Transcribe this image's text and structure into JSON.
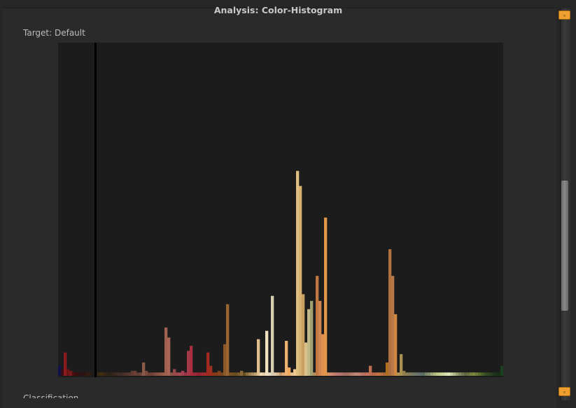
{
  "window": {
    "title": "Analysis: Color-Histogram",
    "target_label": "Target: Default",
    "clipped_section_label": "Classification"
  },
  "scrollbar": {
    "up_icon": "small-square-icon",
    "down_icon": "small-square-icon",
    "accent": "#f0a030",
    "scroll_position": 0.55,
    "visible_fraction": 0.33
  },
  "chart_data": {
    "type": "bar",
    "title": "Color-Histogram",
    "xlabel": "",
    "ylabel": "",
    "ylim": [
      0,
      100
    ],
    "bin_count": 159,
    "marker_bin": 13,
    "bars": [
      {
        "bin": 0,
        "value": 3,
        "color": "#12124a"
      },
      {
        "bin": 1,
        "value": 2,
        "color": "#3a0e14"
      },
      {
        "bin": 2,
        "value": 7,
        "color": "#8a1c20"
      },
      {
        "bin": 3,
        "value": 2,
        "color": "#6a1418"
      },
      {
        "bin": 4,
        "value": 1.5,
        "color": "#7a1a1a"
      },
      {
        "bin": 5,
        "value": 1,
        "color": "#4a1010"
      },
      {
        "bin": 6,
        "value": 1,
        "color": "#3a0c0c"
      },
      {
        "bin": 7,
        "value": 1,
        "color": "#301010"
      },
      {
        "bin": 8,
        "value": 1,
        "color": "#2a1010"
      },
      {
        "bin": 9,
        "value": 1,
        "color": "#301410"
      },
      {
        "bin": 10,
        "value": 1,
        "color": "#361a10"
      },
      {
        "bin": 11,
        "value": 1,
        "color": "#2c1a10"
      },
      {
        "bin": 14,
        "value": 1,
        "color": "#3a2a10"
      },
      {
        "bin": 15,
        "value": 1,
        "color": "#443010"
      },
      {
        "bin": 16,
        "value": 1,
        "color": "#3a2814"
      },
      {
        "bin": 17,
        "value": 1,
        "color": "#302414"
      },
      {
        "bin": 18,
        "value": 1,
        "color": "#2a2218"
      },
      {
        "bin": 19,
        "value": 1,
        "color": "#34241c"
      },
      {
        "bin": 20,
        "value": 1,
        "color": "#3c2820"
      },
      {
        "bin": 21,
        "value": 1,
        "color": "#442c24"
      },
      {
        "bin": 22,
        "value": 1,
        "color": "#3a2c28"
      },
      {
        "bin": 23,
        "value": 1,
        "color": "#4a3028"
      },
      {
        "bin": 24,
        "value": 1,
        "color": "#52342c"
      },
      {
        "bin": 25,
        "value": 1,
        "color": "#5a3a30"
      },
      {
        "bin": 26,
        "value": 1.5,
        "color": "#623c34"
      },
      {
        "bin": 27,
        "value": 1.5,
        "color": "#6a4034"
      },
      {
        "bin": 28,
        "value": 1,
        "color": "#5c3c34"
      },
      {
        "bin": 29,
        "value": 1,
        "color": "#6a4438"
      },
      {
        "bin": 30,
        "value": 4,
        "color": "#8a5a48"
      },
      {
        "bin": 31,
        "value": 1.5,
        "color": "#7a4a3c"
      },
      {
        "bin": 32,
        "value": 1,
        "color": "#6a4034"
      },
      {
        "bin": 33,
        "value": 1,
        "color": "#704438"
      },
      {
        "bin": 34,
        "value": 1,
        "color": "#7a4a3e"
      },
      {
        "bin": 35,
        "value": 1,
        "color": "#8a5044"
      },
      {
        "bin": 36,
        "value": 1,
        "color": "#905648"
      },
      {
        "bin": 37,
        "value": 1,
        "color": "#9a5c4c"
      },
      {
        "bin": 38,
        "value": 14.5,
        "color": "#a06050"
      },
      {
        "bin": 39,
        "value": 11.5,
        "color": "#a86454"
      },
      {
        "bin": 40,
        "value": 1,
        "color": "#8a5448"
      },
      {
        "bin": 41,
        "value": 2,
        "color": "#944848"
      },
      {
        "bin": 42,
        "value": 1,
        "color": "#9c4a4c"
      },
      {
        "bin": 43,
        "value": 1,
        "color": "#a44c50"
      },
      {
        "bin": 44,
        "value": 1.5,
        "color": "#a04050"
      },
      {
        "bin": 45,
        "value": 1,
        "color": "#983048"
      },
      {
        "bin": 46,
        "value": 7.5,
        "color": "#a03a48"
      },
      {
        "bin": 47,
        "value": 9,
        "color": "#a82e40"
      },
      {
        "bin": 48,
        "value": 1,
        "color": "#a02a3c"
      },
      {
        "bin": 49,
        "value": 1,
        "color": "#982838"
      },
      {
        "bin": 50,
        "value": 1,
        "color": "#902434"
      },
      {
        "bin": 51,
        "value": 1,
        "color": "#9a2830"
      },
      {
        "bin": 52,
        "value": 1,
        "color": "#a02c2c"
      },
      {
        "bin": 53,
        "value": 7,
        "color": "#a02a20"
      },
      {
        "bin": 54,
        "value": 3,
        "color": "#9a3020"
      },
      {
        "bin": 55,
        "value": 1,
        "color": "#903418"
      },
      {
        "bin": 56,
        "value": 1,
        "color": "#883a18"
      },
      {
        "bin": 57,
        "value": 1.5,
        "color": "#80401a"
      },
      {
        "bin": 58,
        "value": 1,
        "color": "#7a441c"
      },
      {
        "bin": 59,
        "value": 9.5,
        "color": "#8a5828"
      },
      {
        "bin": 60,
        "value": 21.5,
        "color": "#9a6430"
      },
      {
        "bin": 61,
        "value": 1,
        "color": "#7a5020"
      },
      {
        "bin": 62,
        "value": 1,
        "color": "#705020"
      },
      {
        "bin": 63,
        "value": 1,
        "color": "#6a4c1e"
      },
      {
        "bin": 64,
        "value": 1,
        "color": "#7a5a2a"
      },
      {
        "bin": 65,
        "value": 1.5,
        "color": "#8a6a38"
      },
      {
        "bin": 66,
        "value": 1,
        "color": "#6a5020"
      },
      {
        "bin": 67,
        "value": 1,
        "color": "#8a6a3a"
      },
      {
        "bin": 68,
        "value": 1,
        "color": "#a08050"
      },
      {
        "bin": 69,
        "value": 1,
        "color": "#b09068"
      },
      {
        "bin": 70,
        "value": 1,
        "color": "#c0a070"
      },
      {
        "bin": 71,
        "value": 11,
        "color": "#e0c090"
      },
      {
        "bin": 72,
        "value": 1,
        "color": "#f0d8b0"
      },
      {
        "bin": 73,
        "value": 1,
        "color": "#ead0a8"
      },
      {
        "bin": 74,
        "value": 13.5,
        "color": "#f0e0c0"
      },
      {
        "bin": 75,
        "value": 1,
        "color": "#e8d8c0"
      },
      {
        "bin": 76,
        "value": 24,
        "color": "#d8ccb0"
      },
      {
        "bin": 77,
        "value": 1,
        "color": "#e0c8a8"
      },
      {
        "bin": 78,
        "value": 1,
        "color": "#d8b890"
      },
      {
        "bin": 79,
        "value": 1,
        "color": "#c89870"
      },
      {
        "bin": 80,
        "value": 1,
        "color": "#e0a870"
      },
      {
        "bin": 81,
        "value": 10.5,
        "color": "#f0b070"
      },
      {
        "bin": 82,
        "value": 2.5,
        "color": "#f0a860"
      },
      {
        "bin": 83,
        "value": 1,
        "color": "#e8c090"
      },
      {
        "bin": 84,
        "value": 2,
        "color": "#f0c890"
      },
      {
        "bin": 85,
        "value": 61.5,
        "color": "#e0c080"
      },
      {
        "bin": 86,
        "value": 57,
        "color": "#d8b070"
      },
      {
        "bin": 87,
        "value": 24.5,
        "color": "#c8a060"
      },
      {
        "bin": 88,
        "value": 10,
        "color": "#d8c08a"
      },
      {
        "bin": 89,
        "value": 20,
        "color": "#c0b888"
      },
      {
        "bin": 90,
        "value": 22.5,
        "color": "#a0a070"
      },
      {
        "bin": 91,
        "value": 1,
        "color": "#b09060"
      },
      {
        "bin": 92,
        "value": 30,
        "color": "#c07840"
      },
      {
        "bin": 93,
        "value": 22.5,
        "color": "#d08850"
      },
      {
        "bin": 94,
        "value": 12.5,
        "color": "#e09050"
      },
      {
        "bin": 95,
        "value": 47.5,
        "color": "#e09848"
      },
      {
        "bin": 96,
        "value": 1,
        "color": "#d89060"
      },
      {
        "bin": 97,
        "value": 1,
        "color": "#d08870"
      },
      {
        "bin": 98,
        "value": 1,
        "color": "#c88068"
      },
      {
        "bin": 99,
        "value": 1,
        "color": "#c07870"
      },
      {
        "bin": 100,
        "value": 1,
        "color": "#b87470"
      },
      {
        "bin": 101,
        "value": 1,
        "color": "#b07068"
      },
      {
        "bin": 102,
        "value": 1,
        "color": "#a86c60"
      },
      {
        "bin": 103,
        "value": 1,
        "color": "#a87060"
      },
      {
        "bin": 104,
        "value": 1,
        "color": "#b07868"
      },
      {
        "bin": 105,
        "value": 1,
        "color": "#b88070"
      },
      {
        "bin": 106,
        "value": 1,
        "color": "#c08878"
      },
      {
        "bin": 107,
        "value": 1,
        "color": "#c88070"
      },
      {
        "bin": 108,
        "value": 1,
        "color": "#b87868"
      },
      {
        "bin": 109,
        "value": 1,
        "color": "#c07060"
      },
      {
        "bin": 110,
        "value": 1,
        "color": "#c87060"
      },
      {
        "bin": 111,
        "value": 3,
        "color": "#c07050"
      },
      {
        "bin": 112,
        "value": 1,
        "color": "#b86848"
      },
      {
        "bin": 113,
        "value": 1,
        "color": "#c06a48"
      },
      {
        "bin": 114,
        "value": 1,
        "color": "#c87040"
      },
      {
        "bin": 115,
        "value": 1,
        "color": "#b87040"
      },
      {
        "bin": 116,
        "value": 1,
        "color": "#b06838"
      },
      {
        "bin": 117,
        "value": 4,
        "color": "#b07020"
      },
      {
        "bin": 118,
        "value": 38,
        "color": "#b07040"
      },
      {
        "bin": 119,
        "value": 30,
        "color": "#b87848"
      },
      {
        "bin": 120,
        "value": 18.5,
        "color": "#d08840"
      },
      {
        "bin": 121,
        "value": 1,
        "color": "#b89050"
      },
      {
        "bin": 122,
        "value": 6.5,
        "color": "#a89050"
      },
      {
        "bin": 123,
        "value": 1.5,
        "color": "#908048"
      },
      {
        "bin": 124,
        "value": 1,
        "color": "#888050"
      },
      {
        "bin": 125,
        "value": 1,
        "color": "#807a58"
      },
      {
        "bin": 126,
        "value": 1,
        "color": "#787860"
      },
      {
        "bin": 127,
        "value": 1,
        "color": "#707868"
      },
      {
        "bin": 128,
        "value": 1,
        "color": "#687070"
      },
      {
        "bin": 129,
        "value": 1,
        "color": "#607068"
      },
      {
        "bin": 130,
        "value": 1,
        "color": "#587060"
      },
      {
        "bin": 131,
        "value": 1,
        "color": "#788868"
      },
      {
        "bin": 132,
        "value": 1,
        "color": "#889070"
      },
      {
        "bin": 133,
        "value": 1,
        "color": "#a0a878"
      },
      {
        "bin": 134,
        "value": 1,
        "color": "#b0b880"
      },
      {
        "bin": 135,
        "value": 1,
        "color": "#c0c888"
      },
      {
        "bin": 136,
        "value": 1,
        "color": "#c8d090"
      },
      {
        "bin": 137,
        "value": 1,
        "color": "#d0d8a0"
      },
      {
        "bin": 138,
        "value": 1,
        "color": "#d8e0b0"
      },
      {
        "bin": 139,
        "value": 1,
        "color": "#e0e8c0"
      },
      {
        "bin": 140,
        "value": 1,
        "color": "#c8d0a0"
      },
      {
        "bin": 141,
        "value": 1,
        "color": "#b0b888"
      },
      {
        "bin": 142,
        "value": 1,
        "color": "#98a070"
      },
      {
        "bin": 143,
        "value": 1,
        "color": "#808860"
      },
      {
        "bin": 144,
        "value": 1,
        "color": "#707850"
      },
      {
        "bin": 145,
        "value": 1,
        "color": "#606848"
      },
      {
        "bin": 146,
        "value": 1,
        "color": "#687040"
      },
      {
        "bin": 147,
        "value": 1,
        "color": "#788040"
      },
      {
        "bin": 148,
        "value": 1,
        "color": "#808838"
      },
      {
        "bin": 149,
        "value": 1,
        "color": "#6a7838"
      },
      {
        "bin": 150,
        "value": 1,
        "color": "#587030"
      },
      {
        "bin": 151,
        "value": 1,
        "color": "#486028"
      },
      {
        "bin": 152,
        "value": 1,
        "color": "#3a5024"
      },
      {
        "bin": 153,
        "value": 1,
        "color": "#304820"
      },
      {
        "bin": 154,
        "value": 1,
        "color": "#284020"
      },
      {
        "bin": 155,
        "value": 1,
        "color": "#203820"
      },
      {
        "bin": 156,
        "value": 1,
        "color": "#1a3018"
      },
      {
        "bin": 157,
        "value": 1,
        "color": "#183018"
      },
      {
        "bin": 158,
        "value": 3,
        "color": "#1a4020"
      }
    ]
  }
}
